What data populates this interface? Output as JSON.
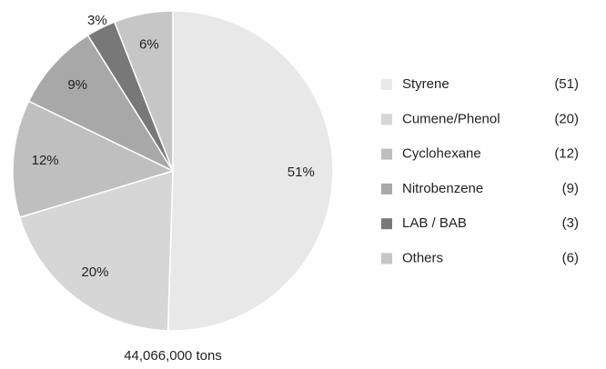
{
  "chart_data": {
    "type": "pie",
    "categories": [
      "Styrene",
      "Cumene/Phenol",
      "Cyclohexane",
      "Nitrobenzene",
      "LAB / BAB",
      "Others"
    ],
    "values": [
      51,
      20,
      12,
      9,
      3,
      6
    ],
    "value_labels": [
      "51%",
      "20%",
      "12%",
      "9%",
      "3%",
      "6%"
    ],
    "legend_value_labels": [
      "(51)",
      "(20)",
      "(12)",
      "(9)",
      "(3)",
      "(6)"
    ],
    "colors": [
      "#e8e8e8",
      "#d6d6d6",
      "#bfbfbf",
      "#a8a8a8",
      "#787878",
      "#c6c6c6"
    ],
    "caption": "44,066,000 tons"
  }
}
